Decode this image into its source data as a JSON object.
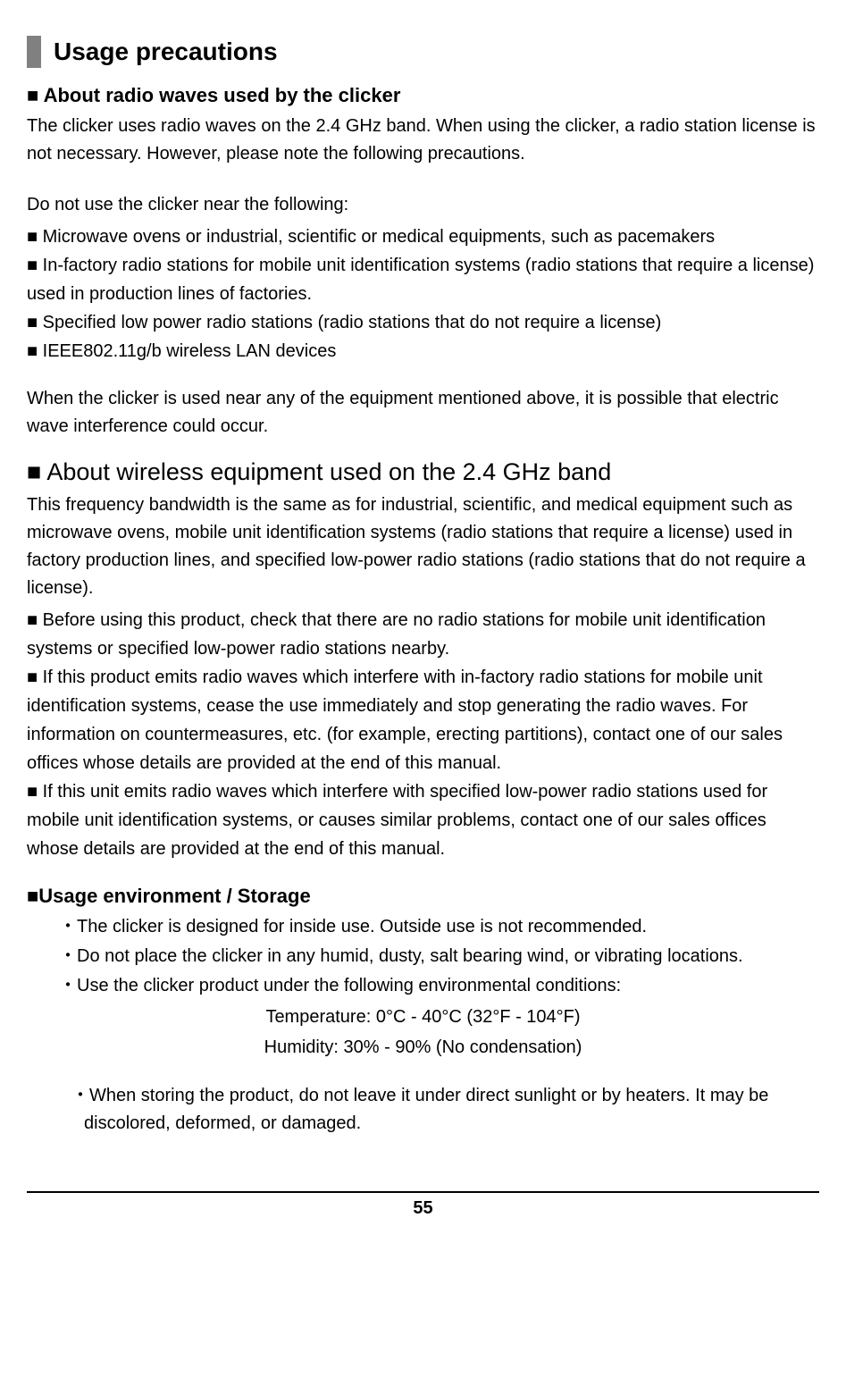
{
  "main_title": "Usage precautions",
  "section1": {
    "heading": "■  About radio waves used by the clicker",
    "intro": "The clicker uses radio waves on the 2.4 GHz band. When using the clicker, a radio station license is not necessary. However, please note the following precautions.",
    "listIntro": "Do not use the clicker near the following:",
    "items": [
      "■ Microwave ovens or industrial, scientific or medical equipments, such as pacemakers",
      "■ In-factory radio stations for mobile unit identification systems (radio stations that require a license) used in production lines of factories.",
      "■ Specified low power radio stations (radio stations that do not require a license)",
      "■ IEEE802.11g/b wireless LAN devices"
    ],
    "outro": "When the clicker is used near any of the equipment mentioned above, it is possible that electric wave interference could occur."
  },
  "section2": {
    "heading": "■ About wireless equipment used on the 2.4 GHz band",
    "intro": "This frequency bandwidth is the same as for industrial, scientific, and medical equipment such as microwave ovens, mobile unit identification systems (radio stations that require a license) used in factory production lines, and specified low-power radio stations (radio stations that do not require a license).",
    "items": [
      "■ Before using this product, check that there are no radio stations for mobile unit identification systems or specified low-power radio stations nearby.",
      "■ If this product emits radio waves which interfere with in-factory radio stations for mobile unit identification systems, cease the use immediately and stop generating the radio waves. For information on countermeasures, etc. (for example, erecting partitions), contact one of our sales offices whose details are provided at the end of this manual.",
      "■ If this unit emits radio waves which interfere with specified low-power radio stations used for mobile unit identification systems, or causes similar problems, contact one of our sales offices whose details are provided at the end of this manual."
    ]
  },
  "section3": {
    "heading": "■Usage environment / Storage",
    "items": [
      "・The clicker is designed for inside use. Outside use is not recommended.",
      "・Do not place the clicker in any humid, dusty, salt bearing wind, or vibrating locations.",
      "・Use the clicker product under the following environmental conditions:"
    ],
    "temp": "Temperature: 0°C - 40°C (32°F - 104°F)",
    "humidity": "Humidity: 30% - 90% (No condensation)",
    "storage": "・When storing the product, do not leave it under direct sunlight or by heaters. It may be discolored, deformed, or damaged."
  },
  "page_number": "55"
}
